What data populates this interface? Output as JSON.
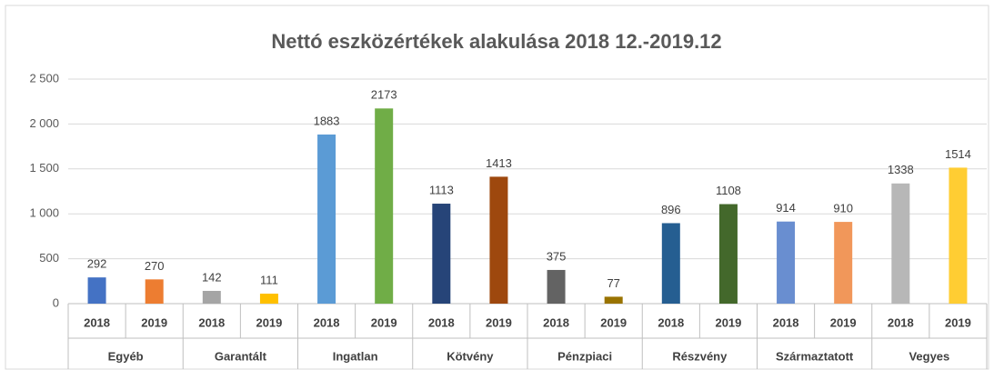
{
  "chart_data": {
    "type": "bar",
    "title": "Nettó eszközértékek  alakulása 2018 12.-2019.12",
    "groups": [
      {
        "name": "Egyéb",
        "categories": [
          "2018",
          "2019"
        ],
        "values": [
          292,
          270
        ],
        "colors": [
          "#4472c4",
          "#ed7d31"
        ]
      },
      {
        "name": "Garantált",
        "categories": [
          "2018",
          "2019"
        ],
        "values": [
          142,
          111
        ],
        "colors": [
          "#a5a5a5",
          "#ffc000"
        ]
      },
      {
        "name": "Ingatlan",
        "categories": [
          "2018",
          "2019"
        ],
        "values": [
          1883,
          2173
        ],
        "colors": [
          "#5b9bd5",
          "#70ad47"
        ]
      },
      {
        "name": "Kötvény",
        "categories": [
          "2018",
          "2019"
        ],
        "values": [
          1113,
          1413
        ],
        "colors": [
          "#264478",
          "#9e480e"
        ]
      },
      {
        "name": "Pénzpiaci",
        "categories": [
          "2018",
          "2019"
        ],
        "values": [
          375,
          77
        ],
        "colors": [
          "#636363",
          "#997300"
        ]
      },
      {
        "name": "Részvény",
        "categories": [
          "2018",
          "2019"
        ],
        "values": [
          896,
          1108
        ],
        "colors": [
          "#255e91",
          "#43682b"
        ]
      },
      {
        "name": "Származtatott",
        "categories": [
          "2018",
          "2019"
        ],
        "values": [
          914,
          910
        ],
        "colors": [
          "#698ed0",
          "#f1975a"
        ]
      },
      {
        "name": "Vegyes",
        "categories": [
          "2018",
          "2019"
        ],
        "values": [
          1338,
          1514
        ],
        "colors": [
          "#b7b7b7",
          "#ffcd33"
        ]
      }
    ],
    "ylim": [
      0,
      2500
    ],
    "yticks": [
      0,
      500,
      {
        "value": 1000,
        "label": "1 000"
      },
      {
        "value": 1500,
        "label": "1 500"
      },
      {
        "value": 2000,
        "label": "2 000"
      },
      {
        "value": 2500,
        "label": "2 500"
      }
    ],
    "grid": true
  }
}
